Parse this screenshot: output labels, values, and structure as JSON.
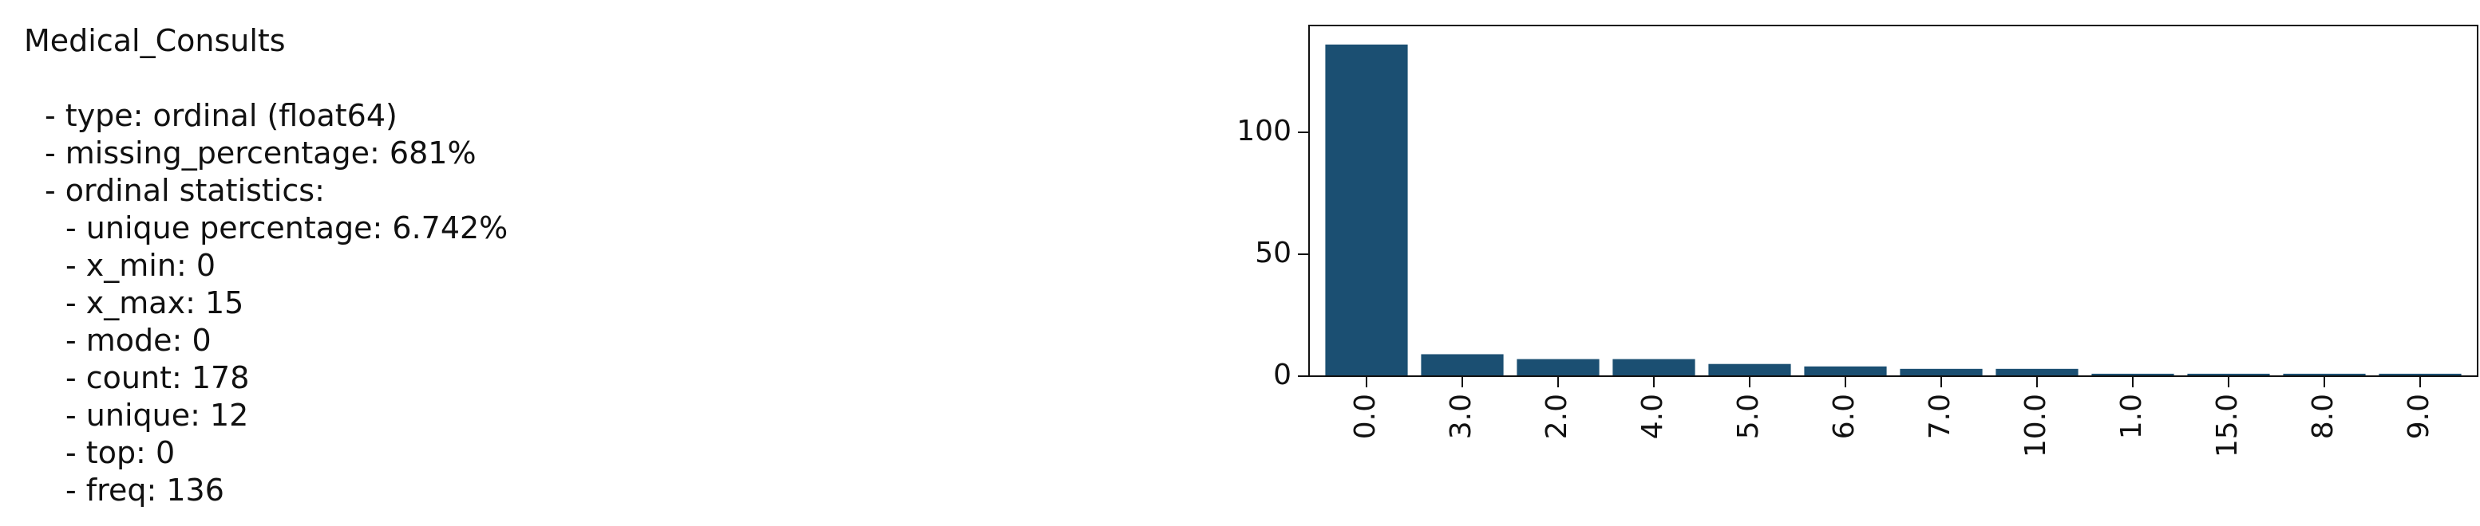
{
  "summary": {
    "title": "Medical_Consults",
    "lines": [
      "- type: ordinal (float64)",
      "- missing_percentage: 681%",
      "- ordinal statistics:",
      "- unique percentage: 6.742%",
      "- x_min: 0",
      "- x_max: 15",
      "- mode: 0",
      "- count: 178",
      "- unique: 12",
      "- top: 0",
      "- freq: 136"
    ]
  },
  "chart_data": {
    "type": "bar",
    "categories": [
      "0.0",
      "3.0",
      "2.0",
      "4.0",
      "5.0",
      "6.0",
      "7.0",
      "10.0",
      "1.0",
      "15.0",
      "8.0",
      "9.0"
    ],
    "values": [
      136,
      9,
      7,
      7,
      5,
      4,
      3,
      3,
      1,
      1,
      1,
      1
    ],
    "color": "#1b4f72",
    "ylim": [
      0,
      143.8
    ],
    "yticks": [
      0,
      50,
      100
    ],
    "grid": false
  }
}
